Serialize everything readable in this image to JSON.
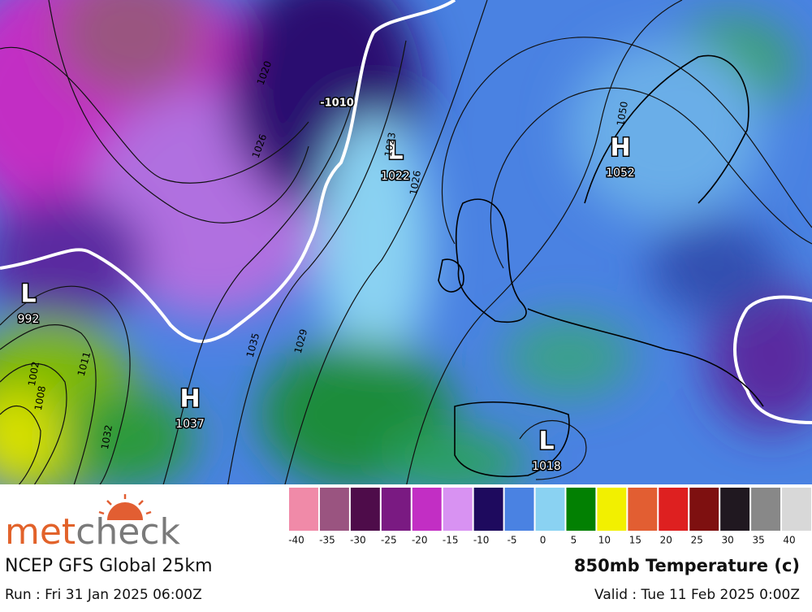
{
  "logo": {
    "prefix": "met",
    "suffix": "check"
  },
  "model": "NCEP GFS Global 25km",
  "run": "Run : Fri 31 Jan 2025 06:00Z",
  "parameter": "850mb Temperature (c)",
  "valid": "Valid : Tue 11 Feb 2025 0:00Z",
  "pressure_centres": [
    {
      "symbol": "H",
      "value": "1052"
    },
    {
      "symbol": "L",
      "value": "1022"
    },
    {
      "symbol": "H",
      "value": "1037"
    },
    {
      "symbol": "L",
      "value": "992"
    },
    {
      "symbol": "L",
      "value": "1018"
    }
  ],
  "isobar_labels": [
    "1020",
    "1026",
    "1023",
    "1026",
    "1050",
    "1035",
    "1029",
    "1032",
    "1011",
    "1002",
    "1008",
    "-1010"
  ],
  "legend": [
    {
      "value": -40,
      "color": "#f08aa8"
    },
    {
      "value": -35,
      "color": "#9a5480"
    },
    {
      "value": -30,
      "color": "#4e0c4a"
    },
    {
      "value": -25,
      "color": "#7a1a82"
    },
    {
      "value": -20,
      "color": "#c22ec4"
    },
    {
      "value": -15,
      "color": "#d892f2"
    },
    {
      "value": -10,
      "color": "#1e0a5e"
    },
    {
      "value": -5,
      "color": "#4a82e2"
    },
    {
      "value": 0,
      "color": "#8ad2f2"
    },
    {
      "value": 5,
      "color": "#028002"
    },
    {
      "value": 10,
      "color": "#f2f000"
    },
    {
      "value": 15,
      "color": "#e25e32"
    },
    {
      "value": 20,
      "color": "#de2020"
    },
    {
      "value": 25,
      "color": "#7e1010"
    },
    {
      "value": 30,
      "color": "#201820"
    },
    {
      "value": 35,
      "color": "#888888"
    },
    {
      "value": 40,
      "color": "#d8d8d8"
    }
  ]
}
